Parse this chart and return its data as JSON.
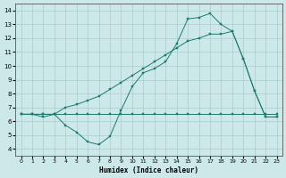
{
  "xlabel": "Humidex (Indice chaleur)",
  "bg_color": "#cce8e8",
  "grid_color": "#aacccc",
  "line_color": "#1e7a6a",
  "xlim": [
    -0.5,
    23.5
  ],
  "ylim": [
    3.5,
    14.5
  ],
  "xticks": [
    0,
    1,
    2,
    3,
    4,
    5,
    6,
    7,
    8,
    9,
    10,
    11,
    12,
    13,
    14,
    15,
    16,
    17,
    18,
    19,
    20,
    21,
    22,
    23
  ],
  "yticks": [
    4,
    5,
    6,
    7,
    8,
    9,
    10,
    11,
    12,
    13,
    14
  ],
  "flat_x": [
    0,
    1,
    2,
    3,
    4,
    5,
    6,
    7,
    8,
    9,
    10,
    11,
    12,
    13,
    14,
    15,
    16,
    17,
    18,
    19,
    20,
    21,
    22,
    23
  ],
  "flat_y": [
    6.5,
    6.5,
    6.5,
    6.5,
    6.5,
    6.5,
    6.5,
    6.5,
    6.5,
    6.5,
    6.5,
    6.5,
    6.5,
    6.5,
    6.5,
    6.5,
    6.5,
    6.5,
    6.5,
    6.5,
    6.5,
    6.5,
    6.5,
    6.5
  ],
  "dip_x": [
    0,
    1,
    2,
    3,
    4,
    5,
    6,
    7,
    8,
    9,
    10,
    11,
    12,
    13,
    14,
    15,
    16,
    17,
    18,
    19,
    20,
    21,
    22,
    23
  ],
  "dip_y": [
    6.5,
    6.5,
    6.3,
    6.5,
    5.7,
    5.2,
    4.5,
    4.3,
    4.9,
    6.8,
    8.5,
    9.5,
    9.8,
    10.3,
    11.6,
    13.4,
    13.5,
    13.8,
    13.0,
    12.5,
    10.5,
    8.2,
    6.3,
    6.3
  ],
  "rise_x": [
    0,
    1,
    2,
    3,
    4,
    5,
    6,
    7,
    8,
    9,
    10,
    11,
    12,
    13,
    14,
    15,
    16,
    17,
    18,
    19,
    20,
    21,
    22,
    23
  ],
  "rise_y": [
    6.5,
    6.5,
    6.5,
    6.5,
    7.0,
    7.2,
    7.5,
    7.8,
    8.3,
    8.8,
    9.3,
    9.8,
    10.3,
    10.8,
    11.3,
    11.8,
    12.0,
    12.3,
    12.3,
    12.5,
    10.5,
    8.2,
    6.3,
    6.3
  ]
}
